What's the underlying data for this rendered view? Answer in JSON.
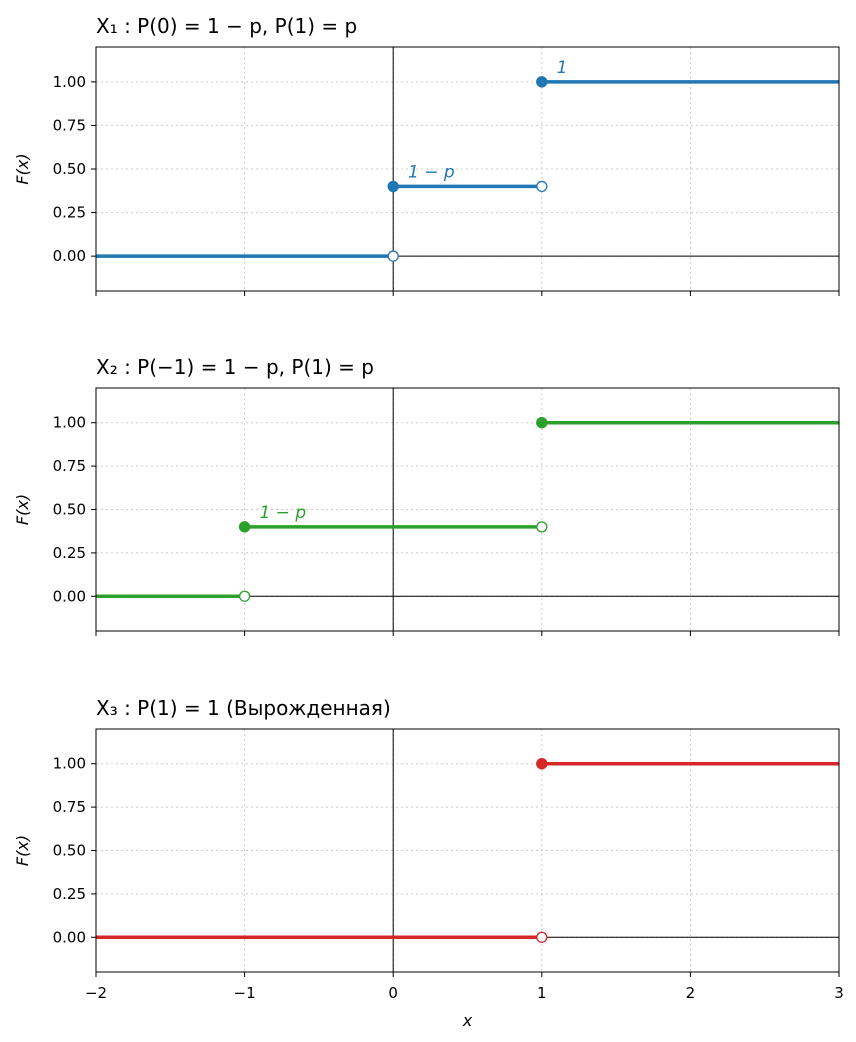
{
  "chart_data": [
    {
      "type": "line",
      "title": "X₁ : P(0) = 1 − p, P(1) = p",
      "ylabel": "F(x)",
      "xlabel": "",
      "color": "#1f77b4",
      "xlim": [
        -2,
        3
      ],
      "ylim": [
        -0.2,
        1.2
      ],
      "xticks": [
        -2,
        -1,
        0,
        1,
        2,
        3
      ],
      "yticks": [
        0.0,
        0.25,
        0.5,
        0.75,
        1.0
      ],
      "ytick_labels": [
        "0.00",
        "0.25",
        "0.50",
        "0.75",
        "1.00"
      ],
      "xtick_labels": [],
      "grid": true,
      "segments": [
        {
          "x0": -2,
          "x1": 0,
          "y": 0
        },
        {
          "x0": 0,
          "x1": 1,
          "y": 0.4
        },
        {
          "x0": 1,
          "x1": 3,
          "y": 1
        }
      ],
      "jumps": [
        {
          "x": 0,
          "from": 0,
          "to": 0.4
        },
        {
          "x": 1,
          "from": 0.4,
          "to": 1
        }
      ],
      "annotations": [
        {
          "text": "1 − p",
          "x": 0.1,
          "y": 0.45
        },
        {
          "text": "1",
          "x": 1.1,
          "y": 1.05
        }
      ]
    },
    {
      "type": "line",
      "title": "X₂ : P(−1) = 1 − p, P(1) = p",
      "ylabel": "F(x)",
      "xlabel": "",
      "color": "#2ca02c",
      "xlim": [
        -2,
        3
      ],
      "ylim": [
        -0.2,
        1.2
      ],
      "xticks": [
        -2,
        -1,
        0,
        1,
        2,
        3
      ],
      "yticks": [
        0.0,
        0.25,
        0.5,
        0.75,
        1.0
      ],
      "ytick_labels": [
        "0.00",
        "0.25",
        "0.50",
        "0.75",
        "1.00"
      ],
      "xtick_labels": [],
      "grid": true,
      "segments": [
        {
          "x0": -2,
          "x1": -1,
          "y": 0
        },
        {
          "x0": -1,
          "x1": 1,
          "y": 0.4
        },
        {
          "x0": 1,
          "x1": 3,
          "y": 1
        }
      ],
      "jumps": [
        {
          "x": -1,
          "from": 0,
          "to": 0.4
        },
        {
          "x": 1,
          "from": 0.4,
          "to": 1
        }
      ],
      "annotations": [
        {
          "text": "1 − p",
          "x": -0.9,
          "y": 0.45
        }
      ]
    },
    {
      "type": "line",
      "title": "X₃ : P(1) = 1 (Вырожденная)",
      "ylabel": "F(x)",
      "xlabel": "x",
      "color": "#d62728",
      "xlim": [
        -2,
        3
      ],
      "ylim": [
        -0.2,
        1.2
      ],
      "xticks": [
        -2,
        -1,
        0,
        1,
        2,
        3
      ],
      "yticks": [
        0.0,
        0.25,
        0.5,
        0.75,
        1.0
      ],
      "ytick_labels": [
        "0.00",
        "0.25",
        "0.50",
        "0.75",
        "1.00"
      ],
      "xtick_labels": [
        "−2",
        "−1",
        "0",
        "1",
        "2",
        "3"
      ],
      "grid": true,
      "segments": [
        {
          "x0": -2,
          "x1": 1,
          "y": 0
        },
        {
          "x0": 1,
          "x1": 3,
          "y": 1
        }
      ],
      "jumps": [
        {
          "x": 1,
          "from": 0,
          "to": 1
        }
      ],
      "annotations": []
    }
  ]
}
